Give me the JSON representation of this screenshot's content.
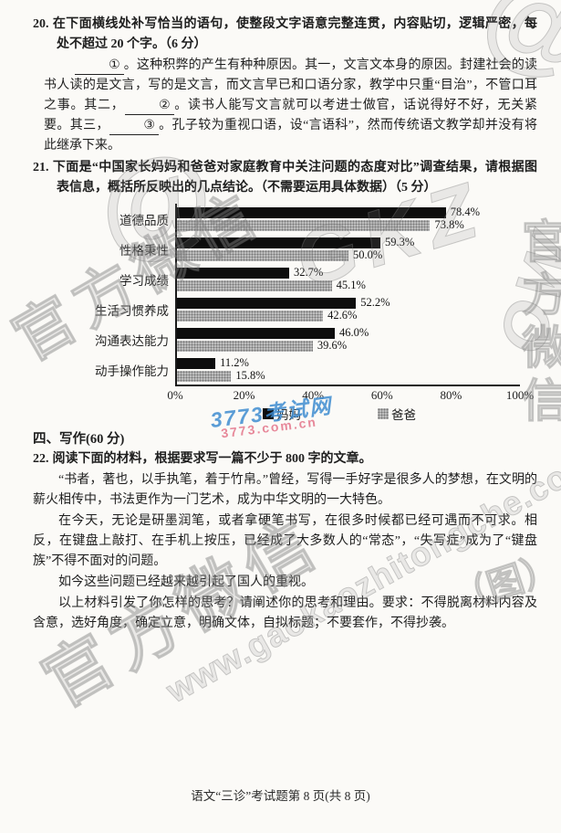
{
  "q20": {
    "number": "20.",
    "stem": "在下面横线处补写恰当的语句，使整段文字语意完整连贯，内容贴切，逻辑严密，每处不超过 20 个字。（6 分）",
    "passage": {
      "blank1": "①",
      "seg1": "。这种积弊的产生有种种原因。其一，文言文本身的原因。封建社会的读书人读的是文言，写的是文言，而文言早已和口语分家，教学中只重“目治”，不管口耳之事。其二，",
      "blank2": "②",
      "seg2": "。读书人能写文言就可以考进士做官，话说得好不好，无关紧要。其三，",
      "blank3": "③",
      "seg3": "。孔子较为重视口语，设“言语科”，然而传统语文教学却并没有将此继承下来。"
    }
  },
  "q21": {
    "number": "21.",
    "stem": "下面是“中国家长妈妈和爸爸对家庭教育中关注问题的态度对比”调查结果，请根据图表信息，概括所反映出的几点结论。（不需要运用具体数据）（5 分）"
  },
  "chart_data": {
    "type": "bar",
    "orientation": "horizontal",
    "title": "中国家长妈妈和爸爸对家庭教育中关注问题的态度对比",
    "categories": [
      "道德品质",
      "性格秉性",
      "学习成绩",
      "生活习惯养成",
      "沟通表达能力",
      "动手操作能力"
    ],
    "series": [
      {
        "name": "妈妈",
        "color": "#0d0d0d",
        "values": [
          78.4,
          59.3,
          32.7,
          52.2,
          46.0,
          11.2
        ]
      },
      {
        "name": "爸爸",
        "color": "#bdbdbd",
        "values": [
          73.8,
          50.0,
          45.1,
          42.6,
          39.6,
          15.8
        ]
      }
    ],
    "x_ticks": [
      "0%",
      "20%",
      "40%",
      "60%",
      "80%",
      "100%"
    ],
    "xlim": [
      0,
      100
    ],
    "value_suffix": "%",
    "grid": false,
    "legend_position": "bottom"
  },
  "section4": {
    "title": "四、写作(60 分)"
  },
  "q22": {
    "number": "22.",
    "stem": "阅读下面的材料，根据要求写一篇不少于 800 字的文章。",
    "para1": "“书者，著也，以手执笔，着于竹帛。”曾经，写得一手好字是很多人的梦想，在文明的薪火相传中，书法更作为一门艺术，成为中华文明的一大特色。",
    "para2": "在今天，无论是研墨润笔，或者拿硬笔书写，在很多时候都已经可遇而不可求。相反，在键盘上敲打、在手机上按压，已经成了大多数人的“常态”，“失写症”成为了“键盘族”不得不面对的问题。",
    "para3": "如今这些问题已经越来越引起了国人的重视。",
    "para4": "以上材料引发了你怎样的思考？请阐述你的思考和理由。要求：不得脱离材料内容及含意，选好角度，确定立意，明确文体，自拟标题；不要套作，不得抄袭。"
  },
  "footer": "语文“三诊”考试题第 8 页(共 8 页)",
  "watermarks": {
    "wechat": "官方微信",
    "url": "www.gaokaozhitongche.com",
    "gkz": "GKZ",
    "ltr": "OW",
    "at": "@",
    "tu": "（图）",
    "site_blue": "3773考试网",
    "site_red": "3773.com.cn"
  }
}
